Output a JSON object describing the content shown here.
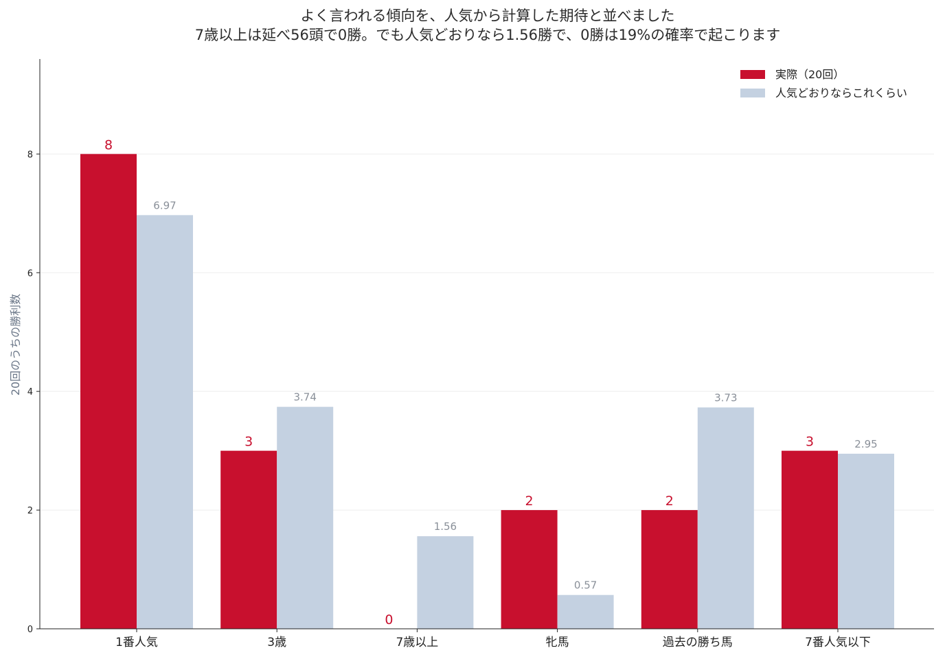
{
  "chart_data": {
    "type": "bar",
    "title": "よく言われる傾向を、人気から計算した期待と並べました",
    "subtitle": "7歳以上は延べ56頭で0勝。でも人気どおりなら1.56勝で、0勝は19%の確率で起こります",
    "ylabel": "20回のうちの勝利数",
    "xlabel": "",
    "ylim": [
      0,
      9.6
    ],
    "yticks": [
      0,
      2,
      4,
      6,
      8
    ],
    "categories": [
      "1番人気",
      "3歳",
      "7歳以上",
      "牝馬",
      "過去の勝ち馬",
      "7番人気以下"
    ],
    "series": [
      {
        "name": "実際（20回）",
        "color": "#c8102e",
        "values": [
          8,
          3,
          0,
          2,
          2,
          3
        ],
        "labels": [
          "8",
          "3",
          "0",
          "2",
          "2",
          "3"
        ]
      },
      {
        "name": "人気どおりならこれくらい",
        "color": "#c4d1e1",
        "values": [
          6.97,
          3.74,
          1.56,
          0.57,
          3.73,
          2.95
        ],
        "labels": [
          "6.97",
          "3.74",
          "1.56",
          "0.57",
          "3.73",
          "2.95"
        ]
      }
    ],
    "grid": "horizontal-light",
    "legend_position": "top-right"
  }
}
